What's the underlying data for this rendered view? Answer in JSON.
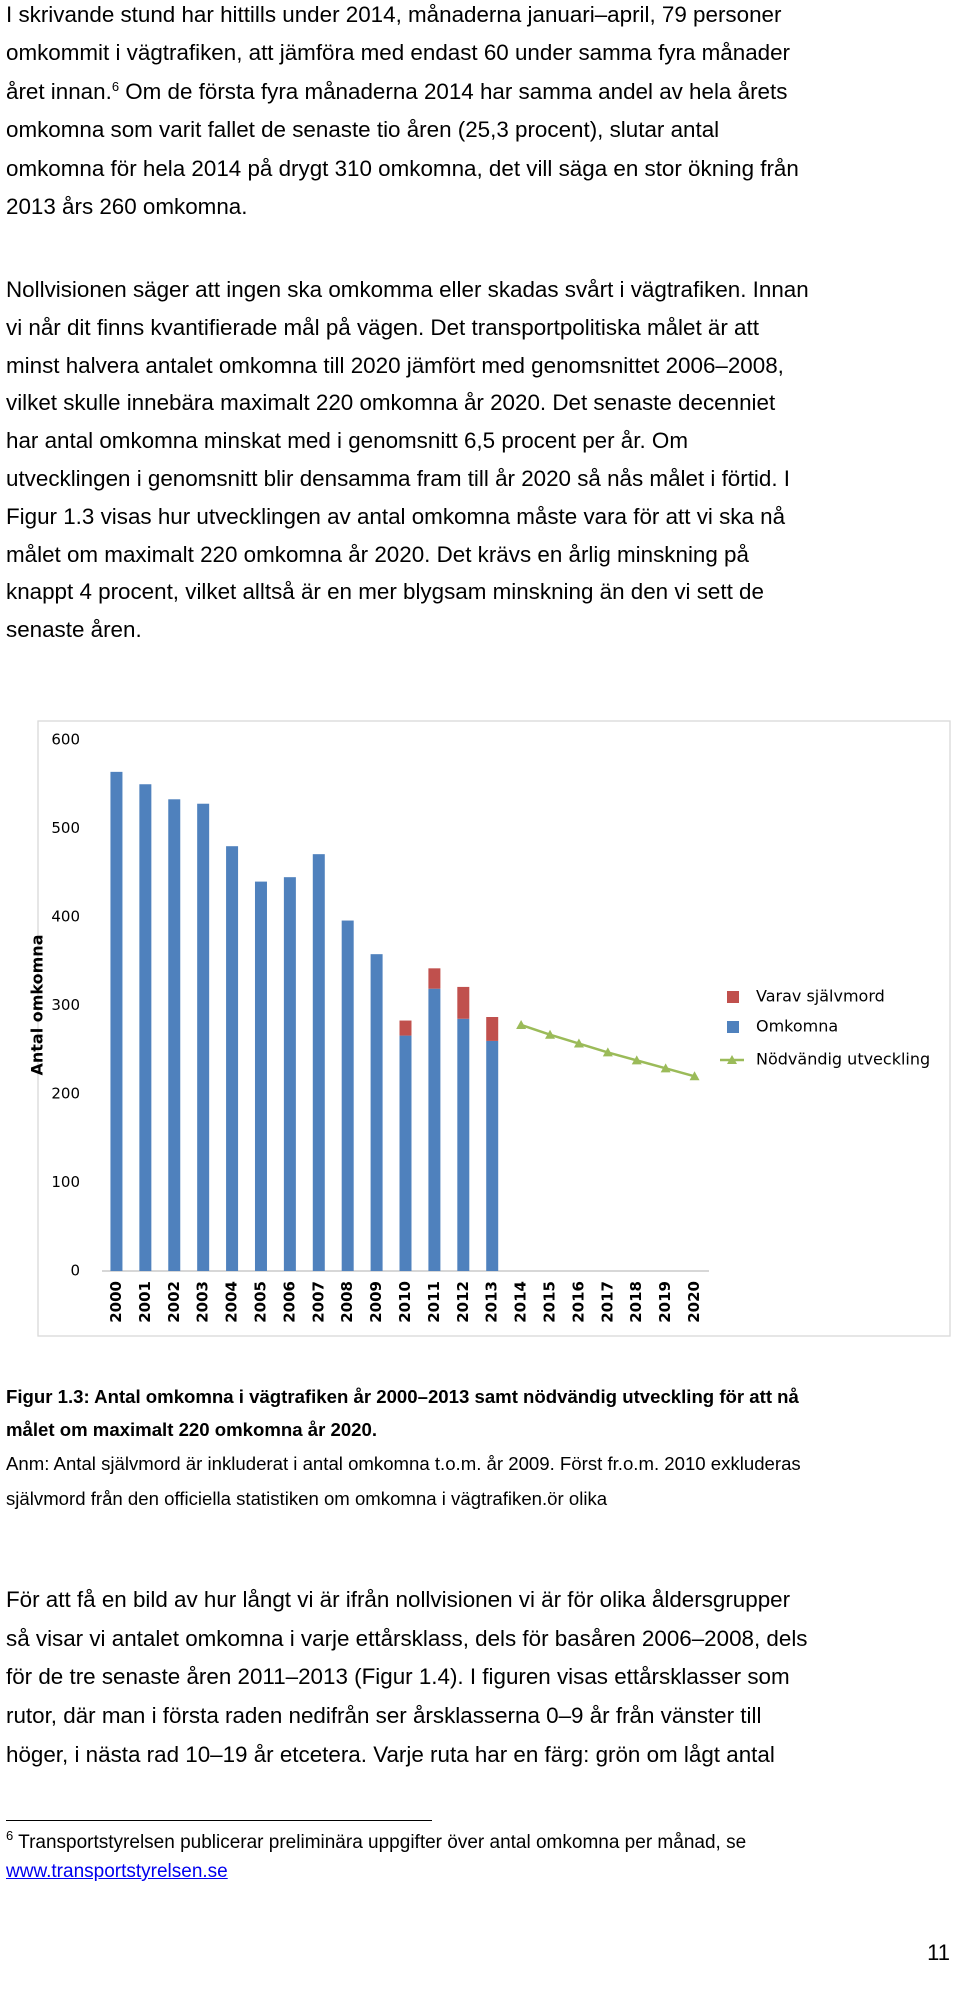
{
  "paragraphs": [
    {
      "lines": [
        "I skrivande stund har hittills under 2014, månaderna januari–april, 79 personer",
        "omkommit i vägtrafiken, att jämföra med endast 60 under samma fyra månader",
        [
          "året innan.",
          "6",
          " Om de första fyra månaderna 2014 har samma andel av hela årets"
        ],
        "omkomna som varit fallet de senaste tio åren (25,3 procent), slutar antal",
        "omkomna för hela 2014 på drygt 310 omkomna, det vill säga en stor ökning från",
        "2013 års 260 omkomna."
      ]
    },
    {
      "lines": [
        "Nollvisionen säger att ingen ska omkomma eller skadas svårt i vägtrafiken. Innan",
        "vi når dit finns kvantifierade mål på vägen. Det transportpolitiska målet är att",
        "minst halvera antalet omkomna till 2020 jämfört med genomsnittet 2006–2008,",
        "vilket skulle innebära maximalt 220 omkomna år 2020. Det senaste decenniet",
        "har antal omkomna minskat med i genomsnitt 6,5 procent per år. Om",
        "utvecklingen i genomsnitt blir densamma fram till år 2020 så nås målet i förtid. I",
        "Figur 1.3 visas hur utvecklingen av antal omkomna måste vara för att vi ska nå",
        "målet om maximalt 220 omkomna år 2020. Det krävs en årlig minskning på",
        "knappt 4 procent, vilket alltså är en mer blygsam minskning än den vi sett de",
        "senaste åren."
      ]
    },
    {
      "lines": [
        "För att få en bild av hur långt vi är ifrån nollvisionen vi är för olika åldersgrupper",
        "så visar vi antalet omkomna i varje ettårsklass, dels för basåren 2006–2008, dels",
        "för de tre senaste åren 2011–2013 (Figur 1.4). I figuren visas ettårsklasser som",
        "rutor, där man i första raden nedifrån ser årsklasserna 0–9 år från vänster till",
        "höger, i nästa rad 10–19 år etcetera. Varje ruta har en färg: grön om lågt antal"
      ]
    }
  ],
  "chart_data": {
    "type": "bar",
    "stacked": true,
    "grid": false,
    "legend": "right",
    "ylabel": "Antal omkomna",
    "categories": [
      "2000",
      "2001",
      "2002",
      "2003",
      "2004",
      "2005",
      "2006",
      "2007",
      "2008",
      "2009",
      "2010",
      "2011",
      "2012",
      "2013",
      "2014",
      "2015",
      "2016",
      "2017",
      "2018",
      "2019",
      "2020"
    ],
    "series": [
      {
        "name": "Omkomna",
        "color": "#4f81bd",
        "type": "bar",
        "values": [
          564,
          550,
          533,
          528,
          480,
          440,
          445,
          471,
          396,
          358,
          266,
          319,
          285,
          260,
          null,
          null,
          null,
          null,
          null,
          null,
          null
        ]
      },
      {
        "name": "Varav självmord",
        "color": "#c0504d",
        "type": "bar",
        "values": [
          null,
          null,
          null,
          null,
          null,
          null,
          null,
          null,
          null,
          null,
          17,
          23,
          36,
          27,
          null,
          null,
          null,
          null,
          null,
          null,
          null
        ]
      },
      {
        "name": "Nödvändig utveckling",
        "color": "#9bbb59",
        "type": "line",
        "values": [
          null,
          null,
          null,
          null,
          null,
          null,
          null,
          null,
          null,
          null,
          null,
          null,
          null,
          null,
          278,
          267,
          257,
          247,
          238,
          229,
          220
        ]
      }
    ],
    "ylim": [
      0,
      600
    ],
    "yticks": [
      0,
      100,
      200,
      300,
      400,
      500,
      600
    ]
  },
  "caption": {
    "title_lines": [
      "Figur 1.3: Antal omkomna i vägtrafiken år 2000–2013 samt nödvändig utveckling för att nå",
      "målet om maximalt 220 omkomna år 2020."
    ],
    "note_lines": [
      "Anm: Antal självmord är inkluderat i antal omkomna t.o.m. år 2009. Först fr.o.m. 2010 exkluderas",
      "självmord från den officiella statistiken om omkomna i vägtrafiken.ör olika"
    ]
  },
  "footnote": {
    "marker": "6",
    "text": " Transportstyrelsen publicerar preliminära uppgifter över antal omkomna per månad, se",
    "link": "www.transportstyrelsen.se"
  },
  "page_number": "11"
}
